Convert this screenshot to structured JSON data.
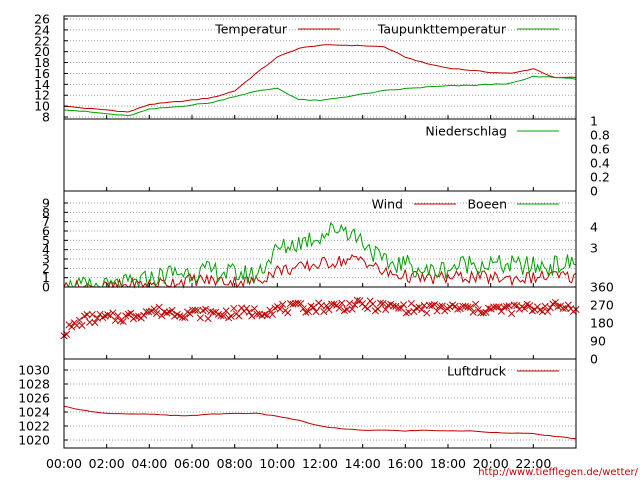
{
  "source_url": "http://www.tiefflegen.de/wetter/",
  "colors": {
    "red": "#c00000",
    "green": "#00a000",
    "grid": "#a0a0a0",
    "frame": "#000000",
    "url": "#c00000"
  },
  "chart_data": [
    {
      "type": "line",
      "id": "temperature",
      "x": [
        "00:00",
        "01:00",
        "02:00",
        "03:00",
        "04:00",
        "05:00",
        "06:00",
        "07:00",
        "08:00",
        "09:00",
        "10:00",
        "11:00",
        "12:00",
        "13:00",
        "14:00",
        "15:00",
        "16:00",
        "17:00",
        "18:00",
        "19:00",
        "20:00",
        "21:00",
        "22:00",
        "23:00",
        "24:00"
      ],
      "series": [
        {
          "name": "Temperatur",
          "color": "#c00000",
          "values": [
            10.0,
            9.6,
            9.3,
            8.9,
            10.3,
            10.7,
            11.1,
            11.6,
            12.8,
            16.0,
            19.0,
            20.6,
            21.2,
            21.2,
            21.1,
            20.9,
            19.0,
            17.8,
            17.0,
            16.6,
            16.2,
            16.0,
            16.9,
            15.2,
            15.3
          ]
        },
        {
          "name": "Taupunkttemperatur",
          "color": "#00a000",
          "values": [
            9.4,
            9.0,
            8.6,
            8.2,
            9.4,
            9.8,
            10.2,
            10.7,
            11.8,
            12.7,
            13.3,
            11.2,
            11.0,
            11.6,
            12.2,
            12.8,
            13.2,
            13.5,
            13.7,
            13.8,
            14.0,
            14.2,
            15.4,
            15.3,
            15.0
          ]
        }
      ],
      "ylim": [
        8,
        26
      ],
      "yticks": [
        "8",
        "10",
        "12",
        "14",
        "16",
        "18",
        "20",
        "22",
        "24",
        "26"
      ],
      "grid": true,
      "legend": "top-right"
    },
    {
      "type": "line",
      "id": "precipitation",
      "x": [
        "00:00",
        "24:00"
      ],
      "series": [
        {
          "name": "Niederschlag",
          "color": "#00a000",
          "values": [
            0,
            0
          ]
        }
      ],
      "ylim": [
        0,
        1
      ],
      "yticks_right": [
        "0",
        "0.2",
        "0.4",
        "0.6",
        "0.8",
        "1"
      ],
      "legend": "top-right"
    },
    {
      "type": "line",
      "id": "wind",
      "x": [
        "00:00",
        "01:00",
        "02:00",
        "03:00",
        "04:00",
        "05:00",
        "06:00",
        "07:00",
        "08:00",
        "09:00",
        "10:00",
        "11:00",
        "12:00",
        "13:00",
        "14:00",
        "15:00",
        "16:00",
        "17:00",
        "18:00",
        "19:00",
        "20:00",
        "21:00",
        "22:00",
        "23:00",
        "24:00"
      ],
      "series": [
        {
          "name": "Wind",
          "color": "#c00000",
          "values": [
            0,
            0,
            0,
            0.2,
            0.3,
            0.5,
            0.8,
            0.7,
            0.6,
            0.6,
            1.8,
            2.0,
            2.5,
            2.8,
            3.0,
            1.5,
            1.2,
            0.9,
            1.0,
            1.1,
            1.0,
            0.9,
            1.0,
            1.2,
            1.0
          ]
        },
        {
          "name": "Boeen",
          "color": "#00a000",
          "values": [
            0,
            0,
            0,
            0.3,
            0.8,
            1.5,
            1.6,
            1.7,
            1.4,
            1.3,
            4.0,
            4.8,
            5.5,
            6.5,
            5.0,
            2.5,
            2.5,
            1.6,
            2.0,
            2.6,
            2.4,
            2.3,
            2.2,
            2.3,
            2.6
          ]
        }
      ],
      "ylim": [
        0,
        9
      ],
      "yticks": [
        "0",
        "1",
        "2",
        "3",
        "4",
        "5",
        "6",
        "7",
        "8",
        "9"
      ],
      "yticks_right": [
        "3",
        "4"
      ],
      "grid": true,
      "legend": "top-right"
    },
    {
      "type": "scatter",
      "id": "wind_direction",
      "marker": "x",
      "color": "#c00000",
      "x": [
        "00:00",
        "01:00",
        "02:00",
        "03:00",
        "04:00",
        "05:00",
        "06:00",
        "07:00",
        "08:00",
        "09:00",
        "10:00",
        "11:00",
        "12:00",
        "13:00",
        "14:00",
        "15:00",
        "16:00",
        "17:00",
        "18:00",
        "19:00",
        "20:00",
        "21:00",
        "22:00",
        "23:00",
        "24:00"
      ],
      "values": [
        135,
        200,
        205,
        210,
        240,
        235,
        230,
        225,
        230,
        235,
        250,
        255,
        260,
        265,
        270,
        260,
        255,
        250,
        255,
        250,
        248,
        250,
        255,
        260,
        262
      ],
      "ylim": [
        0,
        360
      ],
      "yticks_right": [
        "0",
        "90",
        "180",
        "270",
        "360"
      ]
    },
    {
      "type": "line",
      "id": "pressure",
      "x": [
        "00:00",
        "01:00",
        "02:00",
        "03:00",
        "04:00",
        "05:00",
        "06:00",
        "07:00",
        "08:00",
        "09:00",
        "10:00",
        "11:00",
        "12:00",
        "13:00",
        "14:00",
        "15:00",
        "16:00",
        "17:00",
        "18:00",
        "19:00",
        "20:00",
        "21:00",
        "22:00",
        "23:00",
        "24:00"
      ],
      "series": [
        {
          "name": "Luftdruck",
          "color": "#c00000",
          "values": [
            1024.8,
            1024.2,
            1023.8,
            1023.7,
            1023.7,
            1023.5,
            1023.5,
            1023.7,
            1023.8,
            1023.8,
            1023.4,
            1022.8,
            1022.0,
            1021.6,
            1021.4,
            1021.4,
            1021.3,
            1021.4,
            1021.3,
            1021.3,
            1021.1,
            1021.0,
            1020.9,
            1020.5,
            1020.2
          ]
        }
      ],
      "ylim": [
        1019,
        1031
      ],
      "yticks": [
        "1020",
        "1022",
        "1024",
        "1026",
        "1028",
        "1030"
      ],
      "legend": "top-right"
    }
  ],
  "xaxis": {
    "ticks": [
      "00:00",
      "02:00",
      "04:00",
      "06:00",
      "08:00",
      "10:00",
      "12:00",
      "14:00",
      "16:00",
      "18:00",
      "20:00",
      "22:00"
    ]
  }
}
